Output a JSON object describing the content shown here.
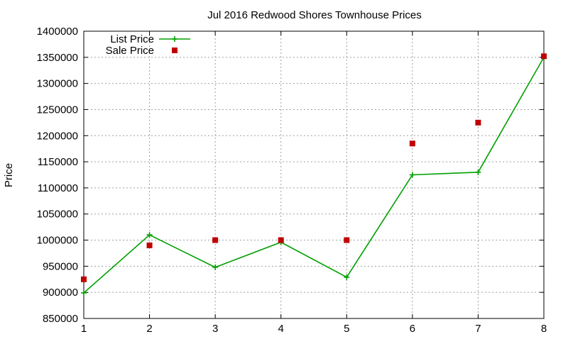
{
  "chart_data": {
    "type": "line",
    "title": "Jul 2016 Redwood Shores Townhouse Prices",
    "xlabel": "",
    "ylabel": "Price",
    "x": [
      1,
      2,
      3,
      4,
      5,
      6,
      7,
      8
    ],
    "xlim": [
      1,
      8
    ],
    "ylim": [
      850000,
      1400000
    ],
    "x_ticks": [
      1,
      2,
      3,
      4,
      5,
      6,
      7,
      8
    ],
    "y_ticks": [
      850000,
      900000,
      950000,
      1000000,
      1050000,
      1100000,
      1150000,
      1200000,
      1250000,
      1300000,
      1350000,
      1400000
    ],
    "grid": true,
    "legend_position": "top-left",
    "series": [
      {
        "name": "List Price",
        "style": "line-with-plus-markers",
        "color": "#00a000",
        "values": [
          899000,
          1010000,
          948000,
          996000,
          929000,
          1125000,
          1130000,
          1350000
        ]
      },
      {
        "name": "Sale Price",
        "style": "square-points",
        "color": "#c00000",
        "values": [
          925000,
          990000,
          1000000,
          1000000,
          1000000,
          1185000,
          1225000,
          1352000
        ]
      }
    ]
  }
}
